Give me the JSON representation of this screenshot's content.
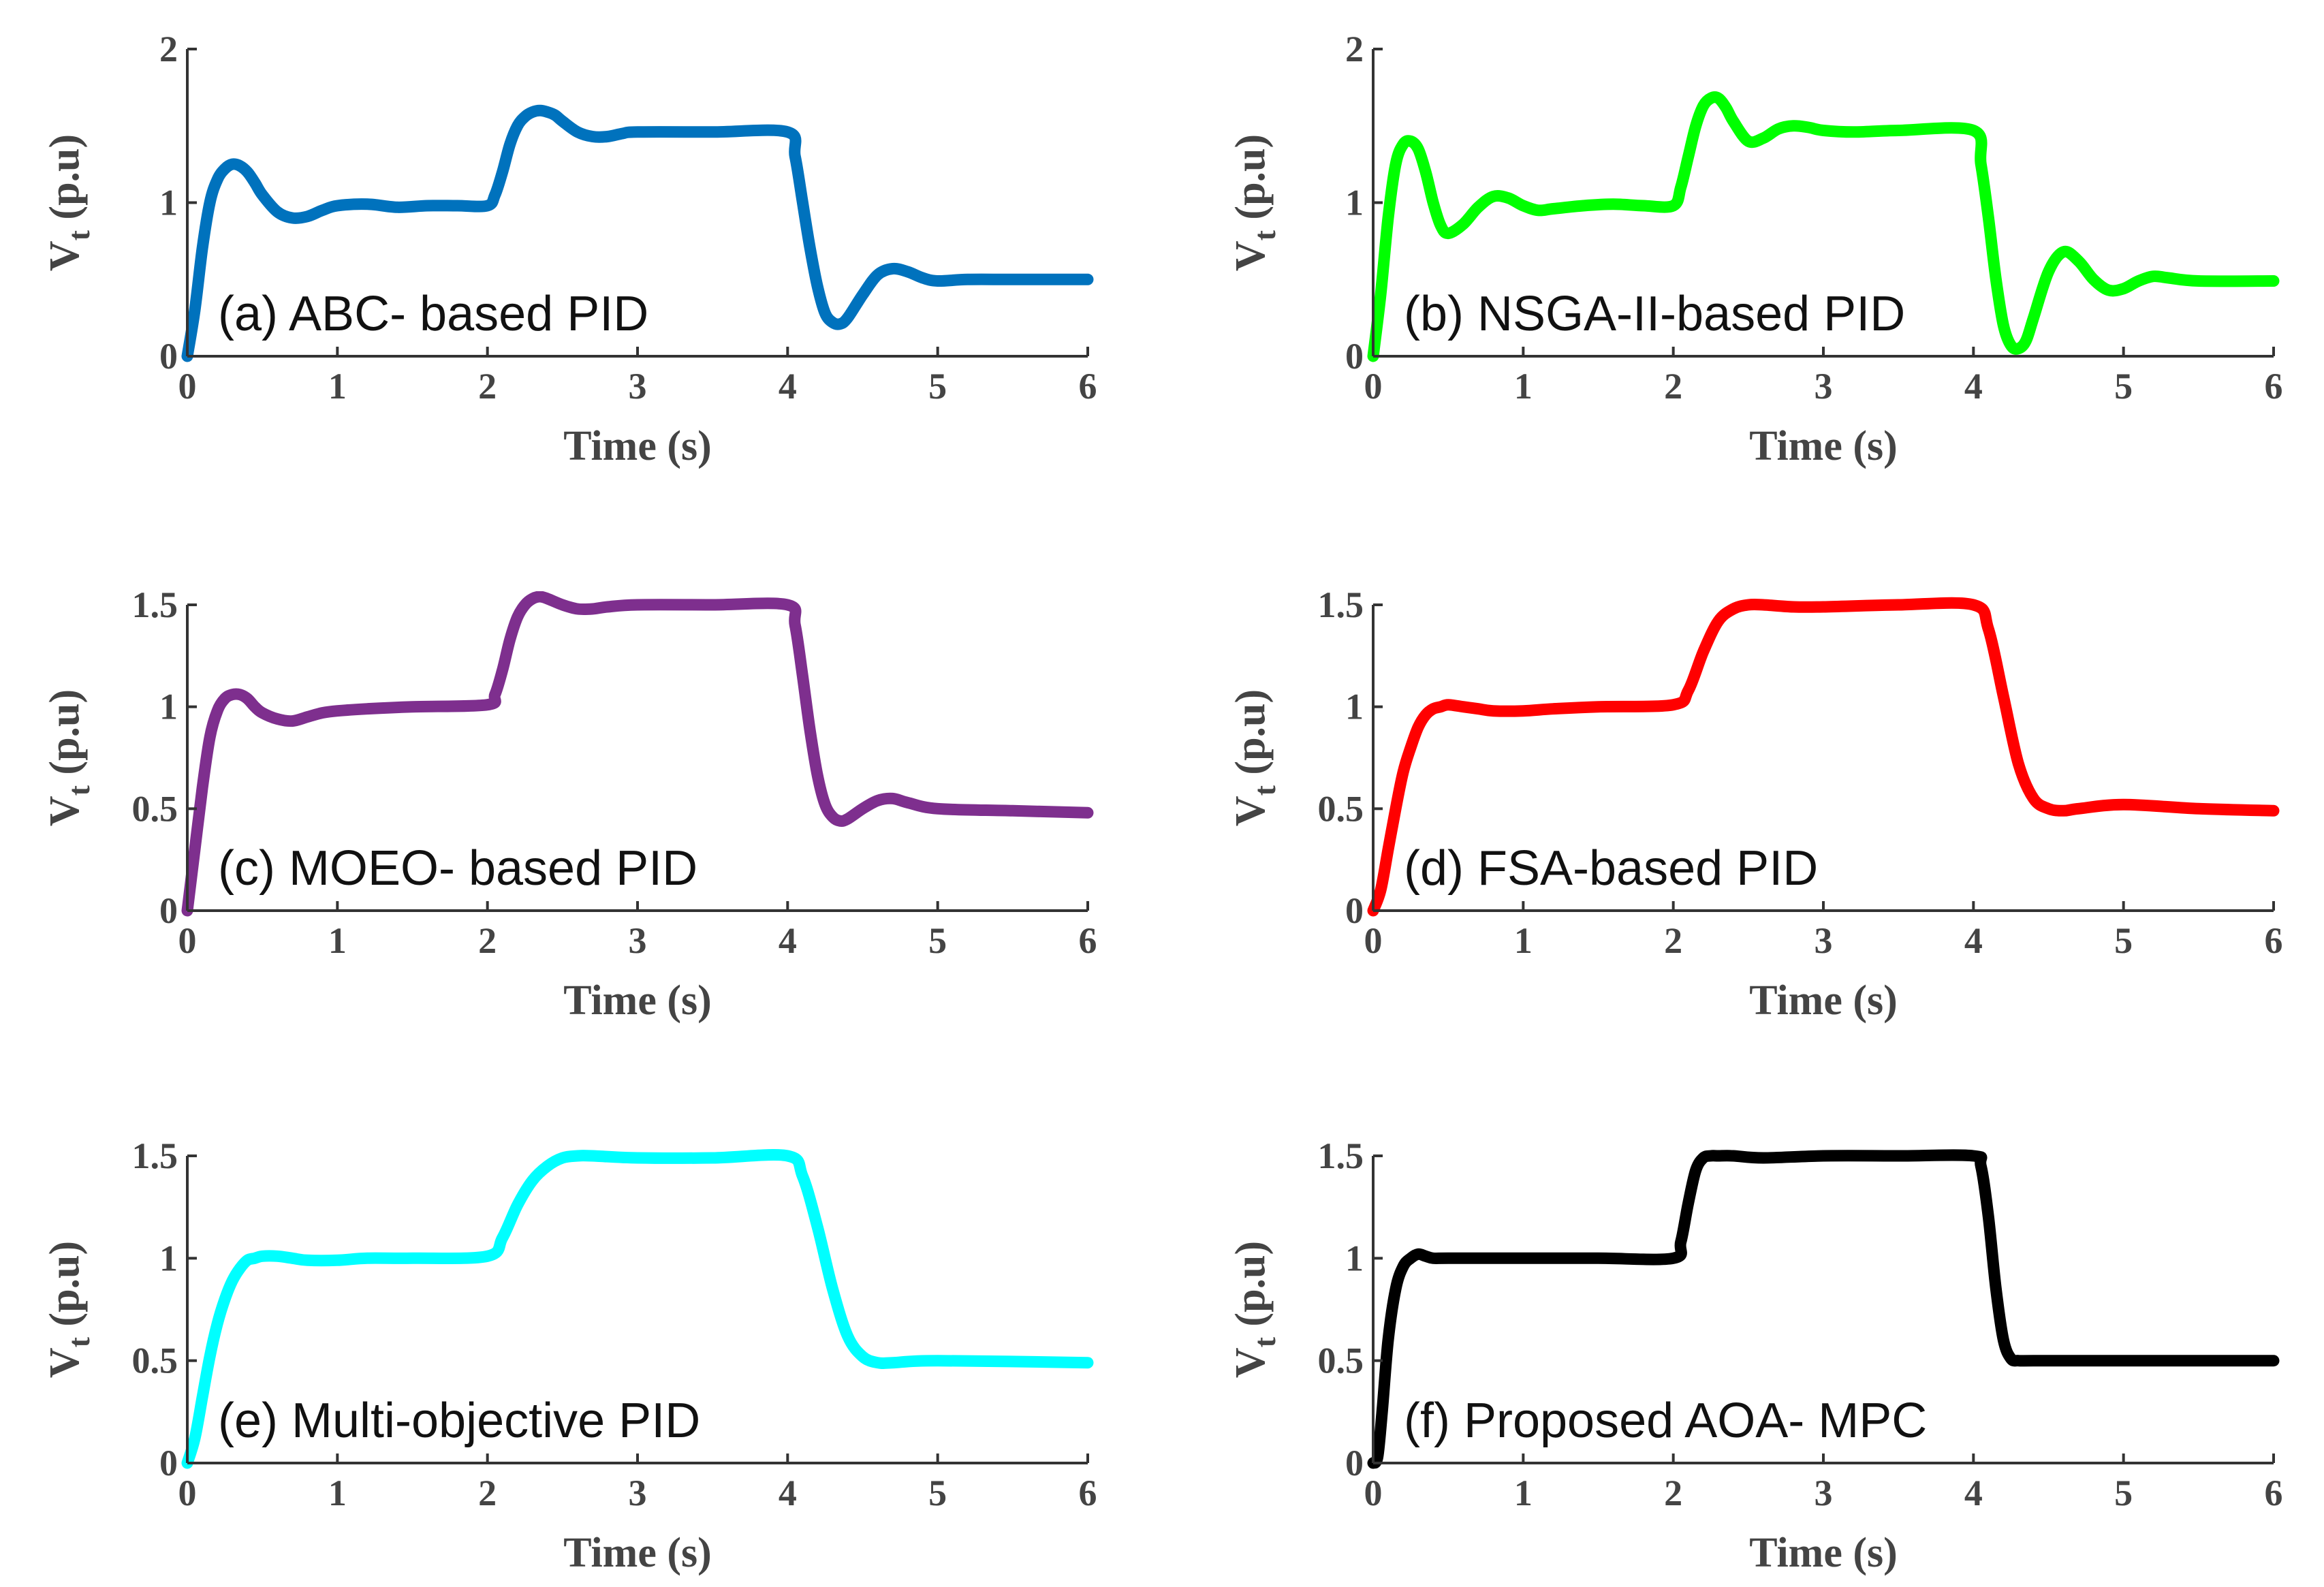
{
  "chart_data": [
    {
      "type": "line",
      "title": "(a) ABC- based PID",
      "xlabel": "Time (s)",
      "ylabel_main": "V",
      "ylabel_sub": "t",
      "ylabel_unit": "(p.u)",
      "xlim": [
        0,
        6
      ],
      "ylim": [
        0,
        2
      ],
      "xticks": [
        0,
        1,
        2,
        3,
        4,
        5,
        6
      ],
      "yticks": [
        0,
        1,
        2
      ],
      "ytick_labels": [
        "0",
        "1",
        "2"
      ],
      "color": "#0072BD",
      "series": [
        {
          "x": [
            0,
            0.05,
            0.1,
            0.15,
            0.2,
            0.25,
            0.3,
            0.35,
            0.4,
            0.45,
            0.5,
            0.6,
            0.7,
            0.8,
            0.9,
            1.0,
            1.2,
            1.4,
            1.6,
            1.8,
            2.0,
            2.05,
            2.1,
            2.15,
            2.2,
            2.25,
            2.3,
            2.35,
            2.4,
            2.45,
            2.5,
            2.6,
            2.7,
            2.8,
            2.9,
            3.0,
            3.5,
            4.0,
            4.05,
            4.1,
            4.15,
            4.2,
            4.25,
            4.3,
            4.35,
            4.4,
            4.5,
            4.6,
            4.7,
            4.8,
            4.9,
            5.0,
            5.2,
            5.5,
            6.0
          ],
          "y": [
            0,
            0.3,
            0.7,
            1.0,
            1.15,
            1.22,
            1.25,
            1.24,
            1.2,
            1.13,
            1.05,
            0.94,
            0.9,
            0.91,
            0.95,
            0.98,
            0.99,
            0.97,
            0.98,
            0.98,
            0.98,
            1.05,
            1.2,
            1.38,
            1.5,
            1.56,
            1.59,
            1.6,
            1.59,
            1.57,
            1.53,
            1.46,
            1.43,
            1.43,
            1.45,
            1.46,
            1.46,
            1.46,
            1.3,
            1.0,
            0.7,
            0.45,
            0.28,
            0.22,
            0.21,
            0.25,
            0.4,
            0.53,
            0.57,
            0.55,
            0.51,
            0.49,
            0.5,
            0.5,
            0.5
          ]
        }
      ]
    },
    {
      "type": "line",
      "title": "(b) NSGA-II-based PID",
      "xlabel": "Time (s)",
      "ylabel_main": "V",
      "ylabel_sub": "t",
      "ylabel_unit": "(p.u)",
      "xlim": [
        0,
        6
      ],
      "ylim": [
        0,
        2
      ],
      "xticks": [
        0,
        1,
        2,
        3,
        4,
        5,
        6
      ],
      "yticks": [
        0,
        1,
        2
      ],
      "ytick_labels": [
        "0",
        "1",
        "2"
      ],
      "color": "#00FF00",
      "series": [
        {
          "x": [
            0,
            0.05,
            0.1,
            0.15,
            0.2,
            0.25,
            0.3,
            0.35,
            0.4,
            0.45,
            0.5,
            0.6,
            0.7,
            0.8,
            0.9,
            1.0,
            1.1,
            1.2,
            1.4,
            1.6,
            1.8,
            2.0,
            2.05,
            2.1,
            2.15,
            2.2,
            2.25,
            2.3,
            2.35,
            2.4,
            2.5,
            2.6,
            2.7,
            2.8,
            2.9,
            3.0,
            3.2,
            3.5,
            4.0,
            4.05,
            4.1,
            4.15,
            4.2,
            4.25,
            4.3,
            4.35,
            4.4,
            4.5,
            4.6,
            4.7,
            4.8,
            4.9,
            5.0,
            5.1,
            5.2,
            5.3,
            5.5,
            6.0
          ],
          "y": [
            0,
            0.4,
            0.9,
            1.25,
            1.38,
            1.4,
            1.35,
            1.2,
            1.0,
            0.85,
            0.8,
            0.86,
            0.97,
            1.04,
            1.03,
            0.98,
            0.95,
            0.96,
            0.98,
            0.99,
            0.98,
            0.98,
            1.1,
            1.3,
            1.5,
            1.63,
            1.68,
            1.68,
            1.62,
            1.53,
            1.4,
            1.42,
            1.48,
            1.5,
            1.49,
            1.47,
            1.46,
            1.47,
            1.47,
            1.25,
            0.9,
            0.5,
            0.2,
            0.07,
            0.05,
            0.1,
            0.25,
            0.55,
            0.68,
            0.62,
            0.5,
            0.43,
            0.44,
            0.49,
            0.52,
            0.51,
            0.49,
            0.49
          ]
        }
      ]
    },
    {
      "type": "line",
      "title": "(c) MOEO- based PID",
      "xlabel": "Time (s)",
      "ylabel_main": "V",
      "ylabel_sub": "t",
      "ylabel_unit": "(p.u)",
      "xlim": [
        0,
        6
      ],
      "ylim": [
        0,
        1.5
      ],
      "xticks": [
        0,
        1,
        2,
        3,
        4,
        5,
        6
      ],
      "yticks": [
        0,
        0.5,
        1,
        1.5
      ],
      "ytick_labels": [
        "0",
        "0.5",
        "1",
        "1.5"
      ],
      "color": "#7E2F8E",
      "series": [
        {
          "x": [
            0,
            0.05,
            0.1,
            0.15,
            0.2,
            0.25,
            0.3,
            0.35,
            0.4,
            0.45,
            0.5,
            0.6,
            0.7,
            0.8,
            0.9,
            1.0,
            1.2,
            1.5,
            2.0,
            2.05,
            2.1,
            2.15,
            2.2,
            2.25,
            2.3,
            2.35,
            2.4,
            2.5,
            2.6,
            2.7,
            2.8,
            3.0,
            3.5,
            4.0,
            4.05,
            4.1,
            4.15,
            4.2,
            4.25,
            4.3,
            4.35,
            4.4,
            4.5,
            4.6,
            4.7,
            4.8,
            5.0,
            5.5,
            6.0
          ],
          "y": [
            0,
            0.3,
            0.6,
            0.85,
            0.98,
            1.04,
            1.06,
            1.06,
            1.04,
            1.0,
            0.97,
            0.94,
            0.93,
            0.95,
            0.97,
            0.98,
            0.99,
            1.0,
            1.01,
            1.06,
            1.18,
            1.33,
            1.44,
            1.5,
            1.53,
            1.54,
            1.53,
            1.5,
            1.48,
            1.48,
            1.49,
            1.5,
            1.5,
            1.5,
            1.4,
            1.15,
            0.88,
            0.66,
            0.52,
            0.46,
            0.44,
            0.45,
            0.5,
            0.54,
            0.55,
            0.53,
            0.5,
            0.49,
            0.48
          ]
        }
      ]
    },
    {
      "type": "line",
      "title": "(d) FSA-based PID",
      "xlabel": "Time (s)",
      "ylabel_main": "V",
      "ylabel_sub": "t",
      "ylabel_unit": "(p.u)",
      "xlim": [
        0,
        6
      ],
      "ylim": [
        0,
        1.5
      ],
      "xticks": [
        0,
        1,
        2,
        3,
        4,
        5,
        6
      ],
      "yticks": [
        0,
        0.5,
        1,
        1.5
      ],
      "ytick_labels": [
        "0",
        "0.5",
        "1",
        "1.5"
      ],
      "color": "#FF0000",
      "series": [
        {
          "x": [
            0,
            0.05,
            0.1,
            0.15,
            0.2,
            0.25,
            0.3,
            0.35,
            0.4,
            0.45,
            0.5,
            0.6,
            0.7,
            0.8,
            1.0,
            1.2,
            1.5,
            2.0,
            2.1,
            2.2,
            2.3,
            2.4,
            2.5,
            2.6,
            2.8,
            3.0,
            3.5,
            4.0,
            4.1,
            4.2,
            4.3,
            4.4,
            4.5,
            4.6,
            4.7,
            5.0,
            5.5,
            6.0
          ],
          "y": [
            0,
            0.1,
            0.3,
            0.5,
            0.68,
            0.8,
            0.9,
            0.96,
            0.99,
            1.0,
            1.01,
            1.0,
            0.99,
            0.98,
            0.98,
            0.99,
            1.0,
            1.01,
            1.08,
            1.27,
            1.42,
            1.48,
            1.5,
            1.5,
            1.49,
            1.49,
            1.5,
            1.5,
            1.38,
            1.05,
            0.72,
            0.55,
            0.5,
            0.49,
            0.5,
            0.52,
            0.5,
            0.49
          ]
        }
      ]
    },
    {
      "type": "line",
      "title": "(e) Multi-objective PID",
      "xlabel": "Time (s)",
      "ylabel_main": "V",
      "ylabel_sub": "t",
      "ylabel_unit": "(p.u)",
      "xlim": [
        0,
        6
      ],
      "ylim": [
        0,
        1.5
      ],
      "xticks": [
        0,
        1,
        2,
        3,
        4,
        5,
        6
      ],
      "yticks": [
        0,
        0.5,
        1,
        1.5
      ],
      "ytick_labels": [
        "0",
        "0.5",
        "1",
        "1.5"
      ],
      "color": "#00FFFF",
      "series": [
        {
          "x": [
            0,
            0.05,
            0.1,
            0.15,
            0.2,
            0.25,
            0.3,
            0.35,
            0.4,
            0.45,
            0.5,
            0.6,
            0.7,
            0.8,
            1.0,
            1.2,
            1.5,
            2.0,
            2.1,
            2.2,
            2.3,
            2.4,
            2.5,
            2.6,
            2.7,
            3.0,
            3.5,
            4.0,
            4.1,
            4.2,
            4.3,
            4.4,
            4.5,
            4.6,
            4.7,
            5.0,
            6.0
          ],
          "y": [
            0,
            0.12,
            0.32,
            0.52,
            0.68,
            0.8,
            0.89,
            0.95,
            0.99,
            1.0,
            1.01,
            1.01,
            1.0,
            0.99,
            0.99,
            1.0,
            1.0,
            1.01,
            1.1,
            1.26,
            1.38,
            1.45,
            1.49,
            1.5,
            1.5,
            1.49,
            1.49,
            1.5,
            1.4,
            1.15,
            0.85,
            0.62,
            0.52,
            0.49,
            0.49,
            0.5,
            0.49
          ]
        }
      ]
    },
    {
      "type": "line",
      "title": "(f) Proposed AOA- MPC",
      "xlabel": "Time (s)",
      "ylabel_main": "V",
      "ylabel_sub": "t",
      "ylabel_unit": "(p.u)",
      "xlim": [
        0,
        6
      ],
      "ylim": [
        0,
        1.5
      ],
      "xticks": [
        0,
        1,
        2,
        3,
        4,
        5,
        6
      ],
      "yticks": [
        0,
        0.5,
        1,
        1.5
      ],
      "ytick_labels": [
        "0",
        "0.5",
        "1",
        "1.5"
      ],
      "color": "#000000",
      "series": [
        {
          "x": [
            0,
            0.03,
            0.06,
            0.1,
            0.15,
            0.2,
            0.25,
            0.3,
            0.35,
            0.4,
            0.5,
            1.0,
            1.5,
            2.0,
            2.05,
            2.1,
            2.15,
            2.2,
            2.25,
            2.3,
            2.4,
            2.6,
            3.0,
            3.5,
            4.0,
            4.05,
            4.1,
            4.15,
            4.2,
            4.25,
            4.3,
            4.4,
            5.0,
            6.0
          ],
          "y": [
            0,
            0.03,
            0.25,
            0.6,
            0.85,
            0.96,
            1.0,
            1.02,
            1.01,
            1.0,
            1.0,
            1.0,
            1.0,
            1.0,
            1.08,
            1.27,
            1.43,
            1.49,
            1.5,
            1.5,
            1.5,
            1.49,
            1.5,
            1.5,
            1.5,
            1.45,
            1.2,
            0.85,
            0.6,
            0.51,
            0.5,
            0.5,
            0.5,
            0.5
          ]
        }
      ]
    }
  ]
}
